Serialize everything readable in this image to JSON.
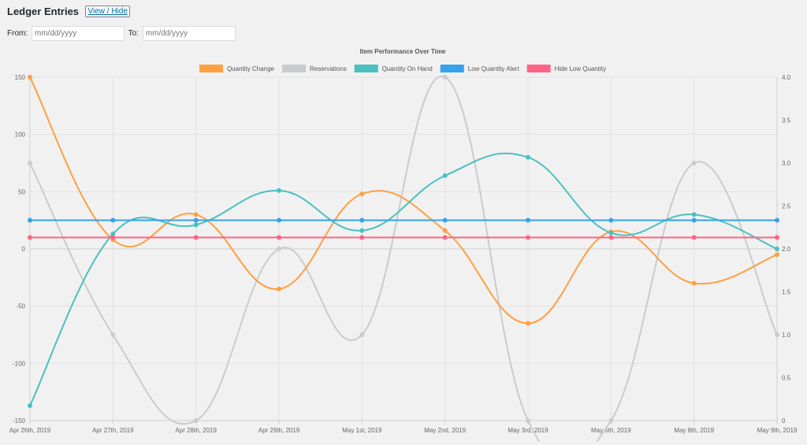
{
  "page": {
    "title": "Ledger Entries",
    "toggle_label": "View / Hide"
  },
  "filters": {
    "from_label": "From:",
    "from_placeholder": "mm/dd/yyyy",
    "to_label": "To:",
    "to_placeholder": "mm/dd/yyyy"
  },
  "colors": {
    "quantity_change": "#ff9f40",
    "reservations": "#c9cbcf",
    "quantity_on_hand": "#4bc0c0",
    "low_quantity_alert": "#36a2eb",
    "hide_low_quantity": "#ff6384"
  },
  "chart_data": {
    "type": "line",
    "title": "Item Performance Over Time",
    "legend_position": "top",
    "grid": true,
    "categories": [
      "Apr 26th, 2019",
      "Apr 27th, 2019",
      "Apr 28th, 2019",
      "Apr 29th, 2019",
      "May 1st, 2019",
      "May 2nd, 2019",
      "May 3rd, 2019",
      "May 5th, 2019",
      "May 8th, 2019",
      "May 9th, 2019"
    ],
    "y_left": {
      "ylim": [
        -150,
        150
      ],
      "ticks": [
        "150",
        "100",
        "50",
        "0",
        "-50",
        "-100",
        "-150"
      ]
    },
    "y_right": {
      "ylim": [
        0,
        4.0
      ],
      "ticks": [
        "4.0",
        "3.5",
        "3.0",
        "2.5",
        "2.0",
        "1.5",
        "1.0",
        "0.5",
        "0"
      ]
    },
    "series": [
      {
        "name": "Quantity Change",
        "color": "#ff9f40",
        "axis": "left",
        "values": [
          150,
          8,
          30,
          -35,
          48,
          16,
          -65,
          15,
          -30,
          -5
        ]
      },
      {
        "name": "Reservations",
        "color": "#c9cbcf",
        "axis": "right",
        "values": [
          3,
          1,
          0,
          2,
          1,
          4,
          0,
          0,
          3,
          1
        ]
      },
      {
        "name": "Quantity On Hand",
        "color": "#4bc0c0",
        "axis": "left",
        "values": [
          -137,
          13,
          21,
          51,
          16,
          64,
          80,
          14,
          30,
          0
        ]
      },
      {
        "name": "Low Quantity Alert",
        "color": "#36a2eb",
        "axis": "left",
        "values": [
          25,
          25,
          25,
          25,
          25,
          25,
          25,
          25,
          25,
          25
        ]
      },
      {
        "name": "Hide Low Quantity",
        "color": "#ff6384",
        "axis": "left",
        "values": [
          10,
          10,
          10,
          10,
          10,
          10,
          10,
          10,
          10,
          10
        ]
      }
    ]
  }
}
